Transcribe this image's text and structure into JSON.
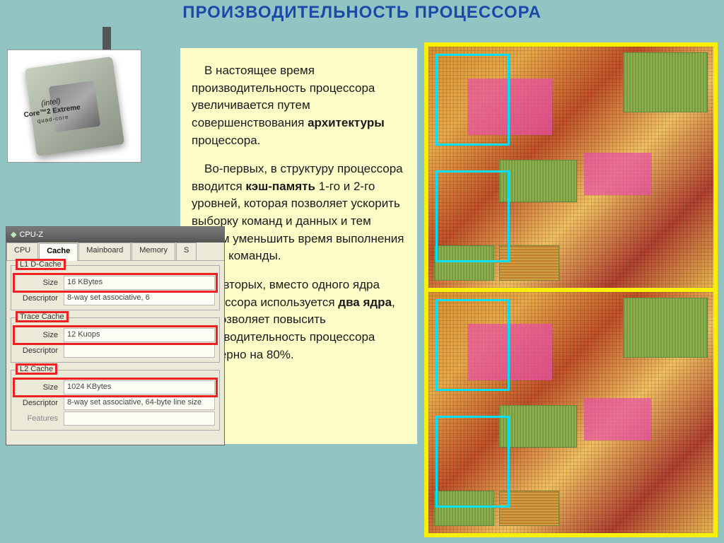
{
  "title": "ПРОИЗВОДИТЕЛЬНОСТЬ ПРОЦЕССОРА",
  "chip": {
    "brand": "(intel)",
    "model": "Core™2 Extreme",
    "sub": "quad-core"
  },
  "text": {
    "p1_a": "В настоящее время производительность процессора увеличивается путем совершенствования ",
    "p1_b": "архитектуры",
    "p1_c": " процессора.",
    "p2_a": "Во-первых, в структуру процессора вводится ",
    "p2_b": "кэш-память",
    "p2_c": " 1-го и 2-го уровней, которая позволяет ускорить выборку команд и данных и тем самым уменьшить время выполнения одной команды.",
    "p3_a": "Во-вторых, вместо одного ядра процессора используется ",
    "p3_b": "два ядра",
    "p3_c": ", что позволяет повысить производительность процессора примерно на 80%."
  },
  "cpuz": {
    "window_title": "CPU-Z",
    "tabs": {
      "cpu": "CPU",
      "cache": "Cache",
      "mainboard": "Mainboard",
      "memory": "Memory",
      "s": "S"
    },
    "labels": {
      "size": "Size",
      "descriptor": "Descriptor",
      "features": "Features"
    },
    "l1d": {
      "legend": "L1 D-Cache",
      "size": "16 KBytes",
      "desc": "8-way set associative, 6"
    },
    "trace": {
      "legend": "Trace Cache",
      "size": "12 Kuops",
      "desc": ""
    },
    "l2": {
      "legend": "L2 Cache",
      "size": "1024 KBytes",
      "desc": "8-way set associative, 64-byte line size"
    }
  },
  "colors": {
    "page_bg": "#93c4c4",
    "title_color": "#1a4aa8",
    "textbox_bg": "#fdfdc8",
    "die_frame": "#f8f000",
    "highlight_red": "#e22222",
    "highlight_cyan": "#00e0ff",
    "cpuz_bg": "#ece9d8"
  }
}
